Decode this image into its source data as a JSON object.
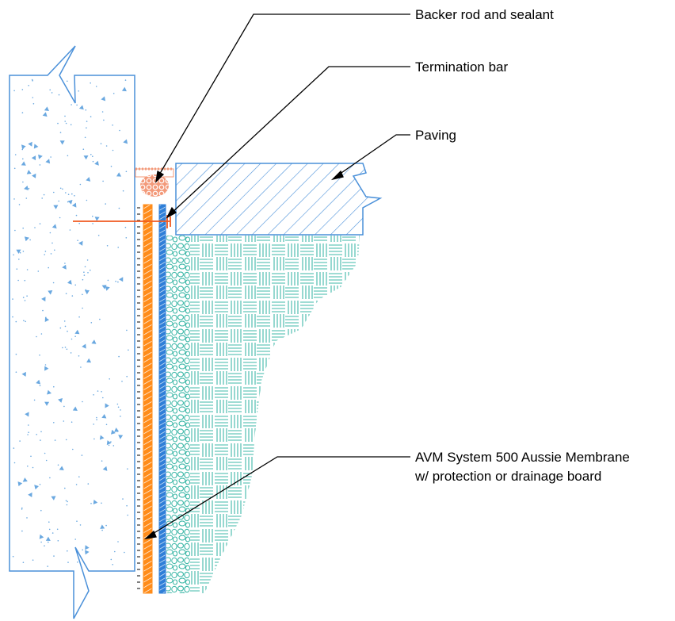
{
  "labels": {
    "backer_rod": "Backer rod and sealant",
    "termination_bar": "Termination bar",
    "paving": "Paving",
    "membrane_line1": "AVM System 500 Aussie Membrane",
    "membrane_line2": "w/ protection or drainage board"
  },
  "colors": {
    "concrete_outline": "#4a90d9",
    "concrete_speckle": "#6aa8e0",
    "paving_hatch": "#4a90d9",
    "membrane_orange": "#ff8c1a",
    "drainage_blue": "#2f7fd8",
    "backer_rod": "#f39a7a",
    "termination_bar": "#f05a20",
    "soil_teal": "#3fb8a8",
    "leader": "#000000"
  }
}
